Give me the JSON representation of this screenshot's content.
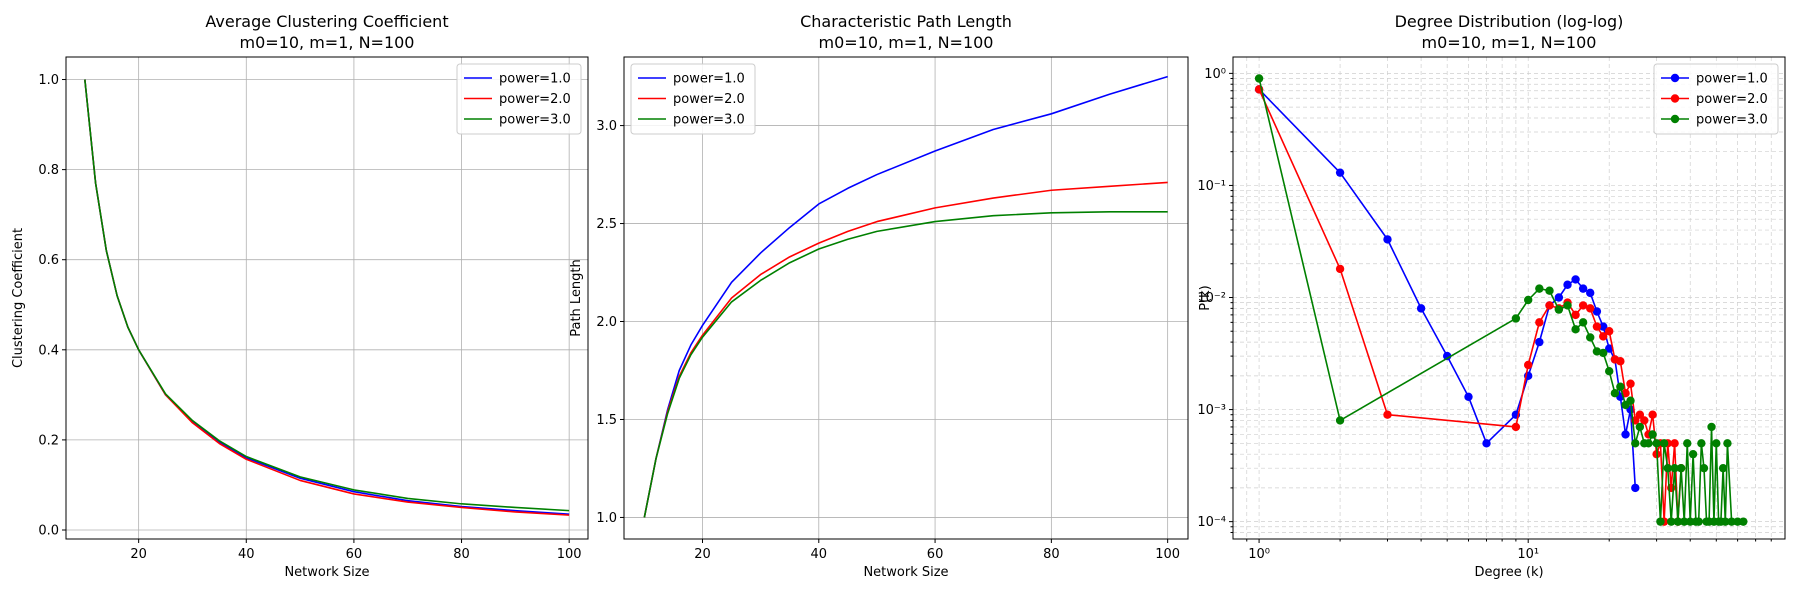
{
  "figure": {
    "background": "#ffffff"
  },
  "chart_data": [
    {
      "type": "line",
      "title": "Average Clustering Coefficient",
      "subtitle": "m0=10, m=1, N=100",
      "xlabel": "Network Size",
      "ylabel": "Clustering Coefficient",
      "xlim": [
        6.5,
        103.5
      ],
      "ylim": [
        -0.02,
        1.05
      ],
      "xticks": [
        20,
        40,
        60,
        80,
        100
      ],
      "yticks": [
        0.0,
        0.2,
        0.4,
        0.6,
        0.8,
        1.0
      ],
      "xtick_labels": [
        "20",
        "40",
        "60",
        "80",
        "100"
      ],
      "ytick_labels": [
        "0.0",
        "0.2",
        "0.4",
        "0.6",
        "0.8",
        "1.0"
      ],
      "grid": true,
      "legend": "upper right",
      "x": [
        10,
        12,
        14,
        16,
        18,
        20,
        25,
        30,
        35,
        40,
        50,
        60,
        70,
        80,
        90,
        100
      ],
      "series": [
        {
          "name": "power=1.0",
          "color": "#0000ff",
          "values": [
            1.0,
            0.77,
            0.62,
            0.52,
            0.45,
            0.4,
            0.3,
            0.24,
            0.195,
            0.16,
            0.115,
            0.085,
            0.065,
            0.052,
            0.043,
            0.035
          ]
        },
        {
          "name": "power=2.0",
          "color": "#ff0000",
          "values": [
            1.0,
            0.77,
            0.62,
            0.52,
            0.45,
            0.4,
            0.3,
            0.238,
            0.192,
            0.157,
            0.11,
            0.08,
            0.062,
            0.05,
            0.04,
            0.033
          ]
        },
        {
          "name": "power=3.0",
          "color": "#008000",
          "values": [
            1.0,
            0.77,
            0.62,
            0.52,
            0.45,
            0.4,
            0.302,
            0.243,
            0.198,
            0.163,
            0.118,
            0.089,
            0.07,
            0.058,
            0.05,
            0.043
          ]
        }
      ]
    },
    {
      "type": "line",
      "title": "Characteristic Path Length",
      "subtitle": "m0=10, m=1, N=100",
      "xlabel": "Network Size",
      "ylabel": "Path Length",
      "xlim": [
        6.5,
        103.5
      ],
      "ylim": [
        0.89,
        3.35
      ],
      "xticks": [
        20,
        40,
        60,
        80,
        100
      ],
      "yticks": [
        1.0,
        1.5,
        2.0,
        2.5,
        3.0
      ],
      "xtick_labels": [
        "20",
        "40",
        "60",
        "80",
        "100"
      ],
      "ytick_labels": [
        "1.0",
        "1.5",
        "2.0",
        "2.5",
        "3.0"
      ],
      "grid": true,
      "legend": "upper left",
      "x": [
        10,
        12,
        14,
        16,
        18,
        20,
        25,
        30,
        35,
        40,
        45,
        50,
        60,
        70,
        80,
        90,
        100
      ],
      "series": [
        {
          "name": "power=1.0",
          "color": "#0000ff",
          "values": [
            1.0,
            1.3,
            1.55,
            1.75,
            1.88,
            1.98,
            2.2,
            2.35,
            2.48,
            2.6,
            2.68,
            2.75,
            2.87,
            2.98,
            3.06,
            3.16,
            3.25
          ]
        },
        {
          "name": "power=2.0",
          "color": "#ff0000",
          "values": [
            1.0,
            1.3,
            1.54,
            1.72,
            1.84,
            1.93,
            2.12,
            2.24,
            2.33,
            2.4,
            2.46,
            2.51,
            2.58,
            2.63,
            2.67,
            2.69,
            2.71
          ]
        },
        {
          "name": "power=3.0",
          "color": "#008000",
          "values": [
            1.0,
            1.3,
            1.53,
            1.71,
            1.83,
            1.92,
            2.1,
            2.21,
            2.3,
            2.37,
            2.42,
            2.46,
            2.51,
            2.54,
            2.555,
            2.56,
            2.56
          ]
        }
      ]
    },
    {
      "type": "line",
      "title": "Degree Distribution (log-log)",
      "subtitle": "m0=10, m=1, N=100",
      "xlabel": "Degree (k)",
      "ylabel": "P(k)",
      "xscale": "log",
      "yscale": "log",
      "xlim": [
        0.8,
        90
      ],
      "ylim": [
        7e-05,
        1.4
      ],
      "xticks": [
        1,
        10
      ],
      "yticks": [
        0.0001,
        0.001,
        0.01,
        0.1,
        1
      ],
      "xtick_labels": [
        "10⁰",
        "10¹"
      ],
      "ytick_labels": [
        "10⁻⁴",
        "10⁻³",
        "10⁻²",
        "10⁻¹",
        "10⁰"
      ],
      "grid": true,
      "grid_minor": true,
      "markers": true,
      "legend": "upper right",
      "series": [
        {
          "name": "power=1.0",
          "color": "#0000ff",
          "x": [
            1,
            2,
            3,
            4,
            5,
            6,
            7,
            9,
            10,
            11,
            12,
            13,
            14,
            15,
            16,
            17,
            18,
            19,
            20,
            21,
            22,
            23,
            24,
            25
          ],
          "values": [
            0.72,
            0.13,
            0.033,
            0.008,
            0.003,
            0.0013,
            0.0005,
            0.0009,
            0.002,
            0.004,
            0.0085,
            0.01,
            0.013,
            0.0145,
            0.012,
            0.011,
            0.0075,
            0.0055,
            0.0035,
            0.0028,
            0.0013,
            0.0006,
            0.001,
            0.0002
          ]
        },
        {
          "name": "power=2.0",
          "color": "#ff0000",
          "x": [
            1,
            2,
            3,
            9,
            10,
            11,
            12,
            13,
            14,
            15,
            16,
            17,
            18,
            19,
            20,
            21,
            22,
            23,
            24,
            25,
            26,
            27,
            28,
            29,
            30,
            31,
            32,
            33,
            34,
            35,
            36,
            37
          ],
          "values": [
            0.72,
            0.018,
            0.0009,
            0.0007,
            0.0025,
            0.006,
            0.0085,
            0.008,
            0.009,
            0.007,
            0.0085,
            0.008,
            0.0055,
            0.0045,
            0.005,
            0.0028,
            0.0027,
            0.0014,
            0.0017,
            0.0008,
            0.0009,
            0.0008,
            0.0006,
            0.0009,
            0.0004,
            0.0005,
            0.0001,
            0.0005,
            0.0002,
            0.0005,
            0.0001,
            0.0003
          ]
        },
        {
          "name": "power=3.0",
          "color": "#008000",
          "x": [
            1,
            2,
            9,
            10,
            11,
            12,
            13,
            14,
            15,
            16,
            17,
            18,
            19,
            20,
            21,
            22,
            23,
            24,
            25,
            26,
            27,
            28,
            29,
            30,
            31,
            32,
            33,
            34,
            35,
            36,
            37,
            38,
            39,
            40,
            41,
            42,
            43,
            44,
            45,
            46,
            47,
            48,
            49,
            50,
            51,
            52,
            53,
            54,
            55,
            57,
            60,
            63
          ],
          "values": [
            0.9,
            0.0008,
            0.0065,
            0.0095,
            0.012,
            0.0115,
            0.0078,
            0.0085,
            0.0052,
            0.006,
            0.0044,
            0.0033,
            0.0032,
            0.0022,
            0.0014,
            0.0016,
            0.0011,
            0.0012,
            0.0005,
            0.0007,
            0.0005,
            0.0005,
            0.0006,
            0.0005,
            0.0001,
            0.0005,
            0.0003,
            0.0001,
            0.0003,
            0.0001,
            0.0003,
            0.0001,
            0.0005,
            0.0001,
            0.0004,
            0.0001,
            0.0001,
            0.0005,
            0.0003,
            0.0001,
            0.0001,
            0.0007,
            0.0001,
            0.0005,
            0.0001,
            0.0001,
            0.0003,
            0.0001,
            0.0005,
            0.0001,
            0.0001,
            0.0001
          ]
        }
      ]
    }
  ]
}
